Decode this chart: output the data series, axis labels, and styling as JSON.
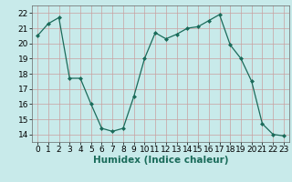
{
  "x": [
    0,
    1,
    2,
    3,
    4,
    5,
    6,
    7,
    8,
    9,
    10,
    11,
    12,
    13,
    14,
    15,
    16,
    17,
    18,
    19,
    20,
    21,
    22,
    23
  ],
  "y": [
    20.5,
    21.3,
    21.7,
    17.7,
    17.7,
    16.0,
    14.4,
    14.2,
    14.4,
    16.5,
    19.0,
    20.7,
    20.3,
    20.6,
    21.0,
    21.1,
    21.5,
    21.9,
    19.9,
    19.0,
    17.5,
    14.7,
    14.0,
    13.9
  ],
  "line_color": "#1a6b5a",
  "marker": "D",
  "marker_size": 2,
  "bg_color": "#c8eaea",
  "grid_color": "#c8a0a0",
  "xlabel": "Humidex (Indice chaleur)",
  "ylim": [
    13.5,
    22.5
  ],
  "xlim": [
    -0.5,
    23.5
  ],
  "yticks": [
    14,
    15,
    16,
    17,
    18,
    19,
    20,
    21,
    22
  ],
  "xticks": [
    0,
    1,
    2,
    3,
    4,
    5,
    6,
    7,
    8,
    9,
    10,
    11,
    12,
    13,
    14,
    15,
    16,
    17,
    18,
    19,
    20,
    21,
    22,
    23
  ],
  "xlabel_fontsize": 7.5,
  "tick_fontsize": 6.5
}
